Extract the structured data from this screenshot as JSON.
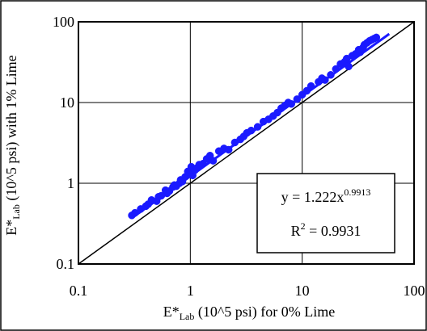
{
  "chart_data": {
    "type": "scatter",
    "x_scale": "log",
    "y_scale": "log",
    "xlim": [
      0.1,
      100
    ],
    "ylim": [
      0.1,
      100
    ],
    "grid": true,
    "x_ticks": [
      "0.1",
      "1",
      "10",
      "100"
    ],
    "y_ticks": [
      "0.1",
      "1",
      "10",
      "100"
    ],
    "xlabel": {
      "main": "E*",
      "sub": "Lab",
      "rest": " (10^5 psi) for 0% Lime"
    },
    "ylabel": {
      "main": "E*",
      "sub": "Lab",
      "rest": " (10^5 psi) with 1% Lime"
    },
    "equation": {
      "lhs": "y = 1.222x",
      "exp": "0.9913"
    },
    "r_squared": {
      "lhs": "R",
      "exp": "2",
      "rhs": " = 0.9931"
    },
    "point_color": "#1a1aff",
    "line_of_equality": {
      "x": [
        0.1,
        100
      ],
      "y": [
        0.1,
        100
      ]
    },
    "trendline": {
      "coef": 1.222,
      "exp": 0.9913,
      "x_range": [
        0.3,
        60
      ]
    },
    "series": [
      {
        "x": [
          0.3,
          0.32,
          0.36,
          0.4,
          0.42,
          0.45,
          0.5,
          0.52,
          0.55,
          0.6,
          0.62,
          0.65,
          0.7,
          0.72,
          0.75,
          0.8,
          0.82,
          0.85,
          0.9,
          0.95,
          1.0,
          1.02,
          1.05,
          1.08,
          1.1,
          1.15,
          1.2,
          1.3,
          1.4,
          1.5,
          1.6,
          1.8,
          2.0,
          2.2,
          2.5,
          2.8,
          3.0,
          3.2,
          3.5,
          4.0,
          4.5,
          5.0,
          5.5,
          6.0,
          6.5,
          7.0,
          7.5,
          8.0,
          9.0,
          10.0,
          11.0,
          12.0,
          14.0,
          15.0,
          16.0,
          18.0,
          20.0,
          22.0,
          24.0,
          25.0,
          26.0,
          28.0,
          30.0,
          32.0,
          33.0,
          35.0,
          36.0,
          38.0,
          40.0,
          42.0,
          44.0,
          46.0
        ],
        "y": [
          0.4,
          0.43,
          0.48,
          0.52,
          0.55,
          0.62,
          0.6,
          0.68,
          0.7,
          0.82,
          0.75,
          0.8,
          0.9,
          0.95,
          0.92,
          1.0,
          1.1,
          1.05,
          1.2,
          1.4,
          1.3,
          1.6,
          1.25,
          1.5,
          1.45,
          1.55,
          1.7,
          1.75,
          2.0,
          2.2,
          1.9,
          2.5,
          2.7,
          2.6,
          3.2,
          3.5,
          3.8,
          4.2,
          4.5,
          5.0,
          5.8,
          6.2,
          6.8,
          7.5,
          8.5,
          9.2,
          10.0,
          9.6,
          11.0,
          12.5,
          14.0,
          16.0,
          18.0,
          20.0,
          19.0,
          22.0,
          26.0,
          30.0,
          32.0,
          35.0,
          28.0,
          38.0,
          40.0,
          45.0,
          42.0,
          48.0,
          52.0,
          55.0,
          58.0,
          60.0,
          62.0,
          64.0
        ]
      }
    ]
  }
}
